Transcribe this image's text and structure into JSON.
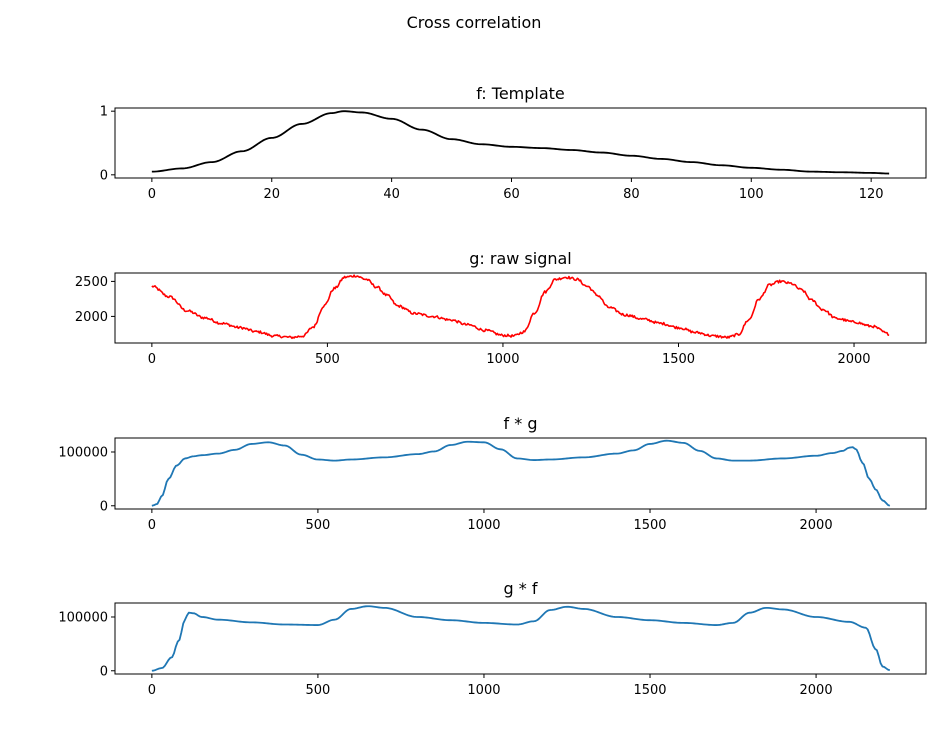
{
  "figure": {
    "title": "Cross correlation"
  },
  "chart_data": [
    {
      "type": "line",
      "title": "f: Template",
      "xlabel": "",
      "ylabel": "",
      "xlim": [
        -6.15,
        129.15
      ],
      "ylim": [
        -0.05,
        1.05
      ],
      "xticks": [
        0,
        20,
        40,
        60,
        80,
        100,
        120
      ],
      "yticks": [
        0,
        1
      ],
      "grid": false,
      "series": [
        {
          "color": "#000000",
          "x": [
            0,
            5,
            10,
            15,
            20,
            25,
            30,
            32,
            35,
            40,
            45,
            50,
            55,
            60,
            65,
            70,
            75,
            80,
            85,
            90,
            95,
            100,
            105,
            110,
            115,
            120,
            123
          ],
          "y": [
            0.05,
            0.1,
            0.2,
            0.37,
            0.58,
            0.8,
            0.97,
            1.0,
            0.98,
            0.88,
            0.71,
            0.56,
            0.48,
            0.44,
            0.42,
            0.39,
            0.35,
            0.3,
            0.25,
            0.2,
            0.15,
            0.11,
            0.08,
            0.05,
            0.04,
            0.03,
            0.02
          ]
        }
      ]
    },
    {
      "type": "line",
      "title": "g: raw signal",
      "xlabel": "",
      "ylabel": "",
      "xlim": [
        -105,
        2205
      ],
      "ylim": [
        1620,
        2620
      ],
      "xticks": [
        0,
        500,
        1000,
        1500,
        2000
      ],
      "yticks": [
        2000,
        2500
      ],
      "grid": false,
      "noise_amplitude": 18,
      "series": [
        {
          "color": "#ff0000",
          "x": [
            0,
            50,
            100,
            150,
            200,
            250,
            300,
            350,
            400,
            430,
            460,
            490,
            520,
            550,
            580,
            610,
            640,
            670,
            700,
            750,
            800,
            850,
            900,
            950,
            1000,
            1030,
            1060,
            1090,
            1120,
            1150,
            1180,
            1210,
            1240,
            1270,
            1300,
            1350,
            1400,
            1450,
            1500,
            1550,
            1600,
            1640,
            1670,
            1700,
            1730,
            1760,
            1790,
            1820,
            1850,
            1880,
            1910,
            1950,
            2000,
            2050,
            2100
          ],
          "y": [
            2430,
            2280,
            2080,
            1980,
            1900,
            1840,
            1780,
            1720,
            1700,
            1720,
            1850,
            2150,
            2400,
            2560,
            2580,
            2530,
            2420,
            2300,
            2150,
            2040,
            2000,
            1950,
            1880,
            1800,
            1730,
            1720,
            1780,
            2050,
            2350,
            2530,
            2560,
            2530,
            2430,
            2300,
            2130,
            2020,
            1960,
            1900,
            1840,
            1770,
            1720,
            1700,
            1740,
            1950,
            2250,
            2450,
            2500,
            2470,
            2380,
            2230,
            2100,
            1970,
            1920,
            1860,
            1750
          ]
        }
      ]
    },
    {
      "type": "line",
      "title": "f * g",
      "xlabel": "",
      "ylabel": "",
      "xlim": [
        -111,
        2331
      ],
      "ylim": [
        -6000,
        126000
      ],
      "xticks": [
        0,
        500,
        1000,
        1500,
        2000
      ],
      "yticks": [
        0,
        100000
      ],
      "grid": false,
      "series": [
        {
          "color": "#1f77b4",
          "x": [
            0,
            15,
            30,
            50,
            75,
            100,
            125,
            150,
            200,
            250,
            300,
            350,
            400,
            450,
            500,
            550,
            600,
            700,
            800,
            850,
            900,
            950,
            1000,
            1050,
            1100,
            1150,
            1200,
            1300,
            1400,
            1450,
            1500,
            1550,
            1600,
            1650,
            1700,
            1750,
            1800,
            1900,
            2000,
            2050,
            2080,
            2100,
            2110,
            2120,
            2140,
            2160,
            2180,
            2200,
            2222
          ],
          "y": [
            0,
            3000,
            18000,
            50000,
            75000,
            88000,
            92000,
            94000,
            97000,
            104000,
            115000,
            118000,
            112000,
            95000,
            86000,
            84000,
            86000,
            90000,
            96000,
            101000,
            113000,
            119000,
            118000,
            105000,
            88000,
            85000,
            86000,
            90000,
            97000,
            103000,
            115000,
            121000,
            117000,
            102000,
            88000,
            84000,
            84000,
            88000,
            93000,
            98000,
            102000,
            108000,
            109000,
            105000,
            80000,
            50000,
            30000,
            10000,
            0
          ]
        }
      ]
    },
    {
      "type": "line",
      "title": "g * f",
      "xlabel": "",
      "ylabel": "",
      "xlim": [
        -111,
        2331
      ],
      "ylim": [
        -6000,
        126000
      ],
      "xticks": [
        0,
        500,
        1000,
        1500,
        2000
      ],
      "yticks": [
        0,
        100000
      ],
      "grid": false,
      "series": [
        {
          "color": "#1f77b4",
          "x": [
            0,
            30,
            60,
            80,
            100,
            110,
            125,
            150,
            200,
            300,
            400,
            500,
            550,
            600,
            650,
            700,
            800,
            900,
            1000,
            1100,
            1150,
            1200,
            1250,
            1300,
            1400,
            1500,
            1600,
            1700,
            1750,
            1800,
            1850,
            1900,
            2000,
            2100,
            2150,
            2180,
            2200,
            2222
          ],
          "y": [
            0,
            5000,
            25000,
            55000,
            95000,
            108000,
            107000,
            100000,
            95000,
            90000,
            86000,
            85000,
            95000,
            115000,
            120000,
            117000,
            100000,
            94000,
            89000,
            86000,
            92000,
            113000,
            119000,
            115000,
            100000,
            94000,
            89000,
            85000,
            89000,
            108000,
            117000,
            114000,
            100000,
            91000,
            80000,
            40000,
            8000,
            1000
          ]
        }
      ]
    }
  ]
}
